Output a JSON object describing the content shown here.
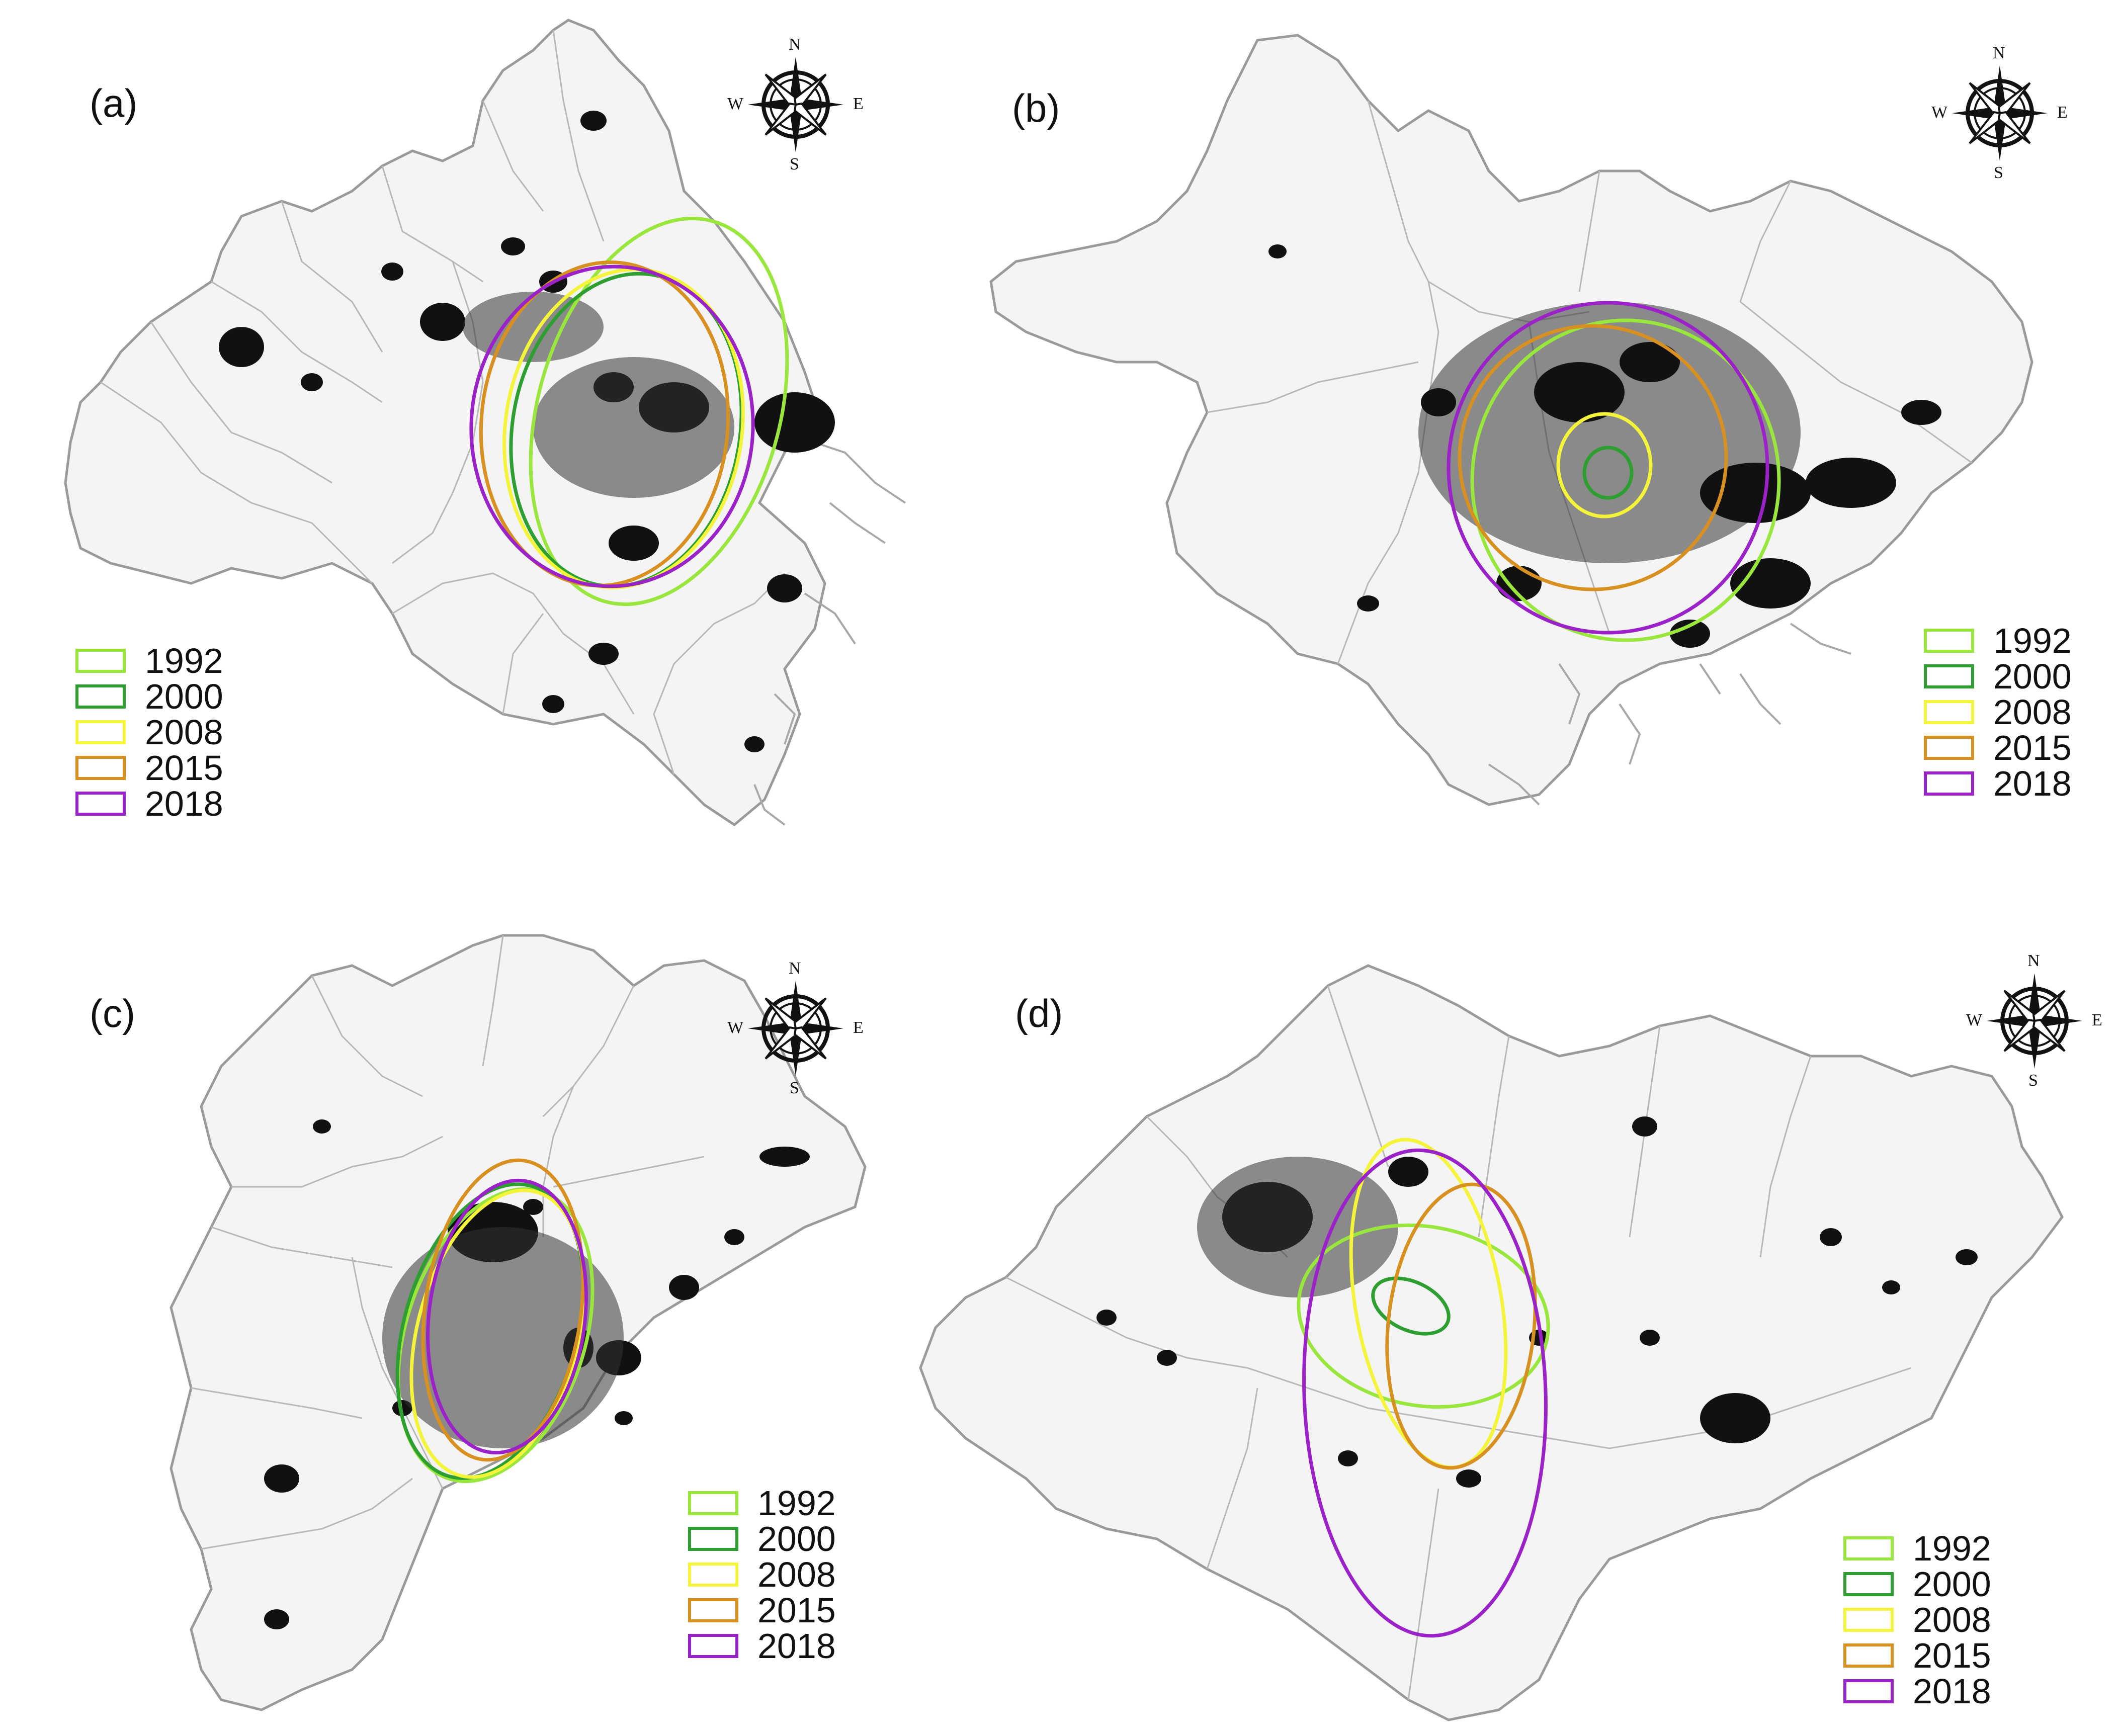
{
  "legend_colors": {
    "1992": "#99e63d",
    "2000": "#2c9f30",
    "2008": "#f4f43a",
    "2015": "#d89020",
    "2018": "#9a22c8"
  },
  "compass": {
    "n": "N",
    "s": "S",
    "e": "E",
    "w": "W",
    "icon": "compass-rose-icon"
  },
  "panels": [
    {
      "label": "(a)",
      "legend": [
        {
          "year": "1992",
          "color": "#99e63d"
        },
        {
          "year": "2000",
          "color": "#2c9f30"
        },
        {
          "year": "2008",
          "color": "#f4f43a"
        },
        {
          "year": "2015",
          "color": "#d89020"
        },
        {
          "year": "2018",
          "color": "#9a22c8"
        }
      ]
    },
    {
      "label": "(b)",
      "legend": [
        {
          "year": "1992",
          "color": "#99e63d"
        },
        {
          "year": "2000",
          "color": "#2c9f30"
        },
        {
          "year": "2008",
          "color": "#f4f43a"
        },
        {
          "year": "2015",
          "color": "#d89020"
        },
        {
          "year": "2018",
          "color": "#9a22c8"
        }
      ]
    },
    {
      "label": "(c)",
      "legend": [
        {
          "year": "1992",
          "color": "#99e63d"
        },
        {
          "year": "2000",
          "color": "#2c9f30"
        },
        {
          "year": "2008",
          "color": "#f4f43a"
        },
        {
          "year": "2015",
          "color": "#d89020"
        },
        {
          "year": "2018",
          "color": "#9a22c8"
        }
      ]
    },
    {
      "label": "(d)",
      "legend": [
        {
          "year": "1992",
          "color": "#99e63d"
        },
        {
          "year": "2000",
          "color": "#2c9f30"
        },
        {
          "year": "2008",
          "color": "#f4f43a"
        },
        {
          "year": "2015",
          "color": "#d89020"
        },
        {
          "year": "2018",
          "color": "#9a22c8"
        }
      ]
    }
  ]
}
